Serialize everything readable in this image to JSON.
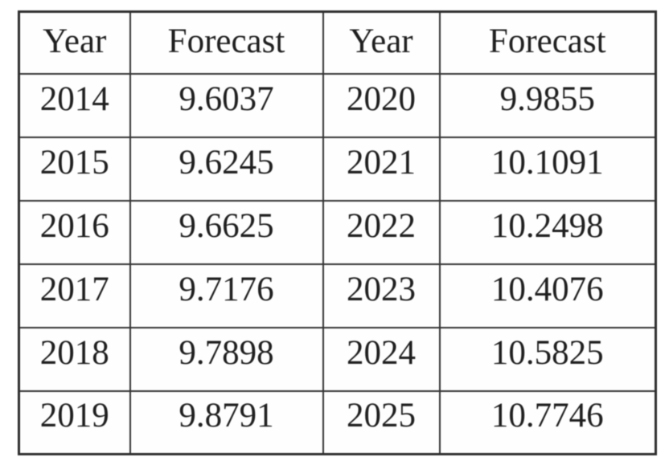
{
  "table": {
    "headers": [
      "Year",
      "Forecast",
      "Year",
      "Forecast"
    ],
    "rows": [
      [
        "2014",
        "9.6037",
        "2020",
        "9.9855"
      ],
      [
        "2015",
        "9.6245",
        "2021",
        "10.1091"
      ],
      [
        "2016",
        "9.6625",
        "2022",
        "10.2498"
      ],
      [
        "2017",
        "9.7176",
        "2023",
        "10.4076"
      ],
      [
        "2018",
        "9.7898",
        "2024",
        "10.5825"
      ],
      [
        "2019",
        "9.8791",
        "2025",
        "10.7746"
      ]
    ]
  },
  "colors": {
    "text": "#1f1f1f",
    "border": "#343434",
    "background": "#ffffff"
  }
}
